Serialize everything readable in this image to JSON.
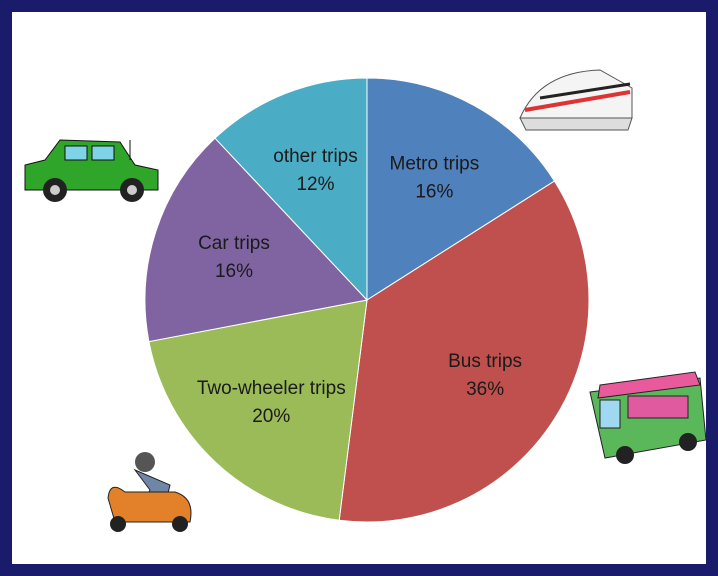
{
  "chart_data": {
    "type": "pie",
    "categories": [
      "Metro trips",
      "Bus trips",
      "Two-wheeler trips",
      "Car trips",
      "other trips"
    ],
    "values": [
      16,
      36,
      20,
      16,
      12
    ],
    "value_labels": [
      "16%",
      "36%",
      "20%",
      "16%",
      "12%"
    ],
    "colors": [
      "#4f81bd",
      "#c0504d",
      "#9bbb59",
      "#8064a2",
      "#4bacc6"
    ]
  }
}
